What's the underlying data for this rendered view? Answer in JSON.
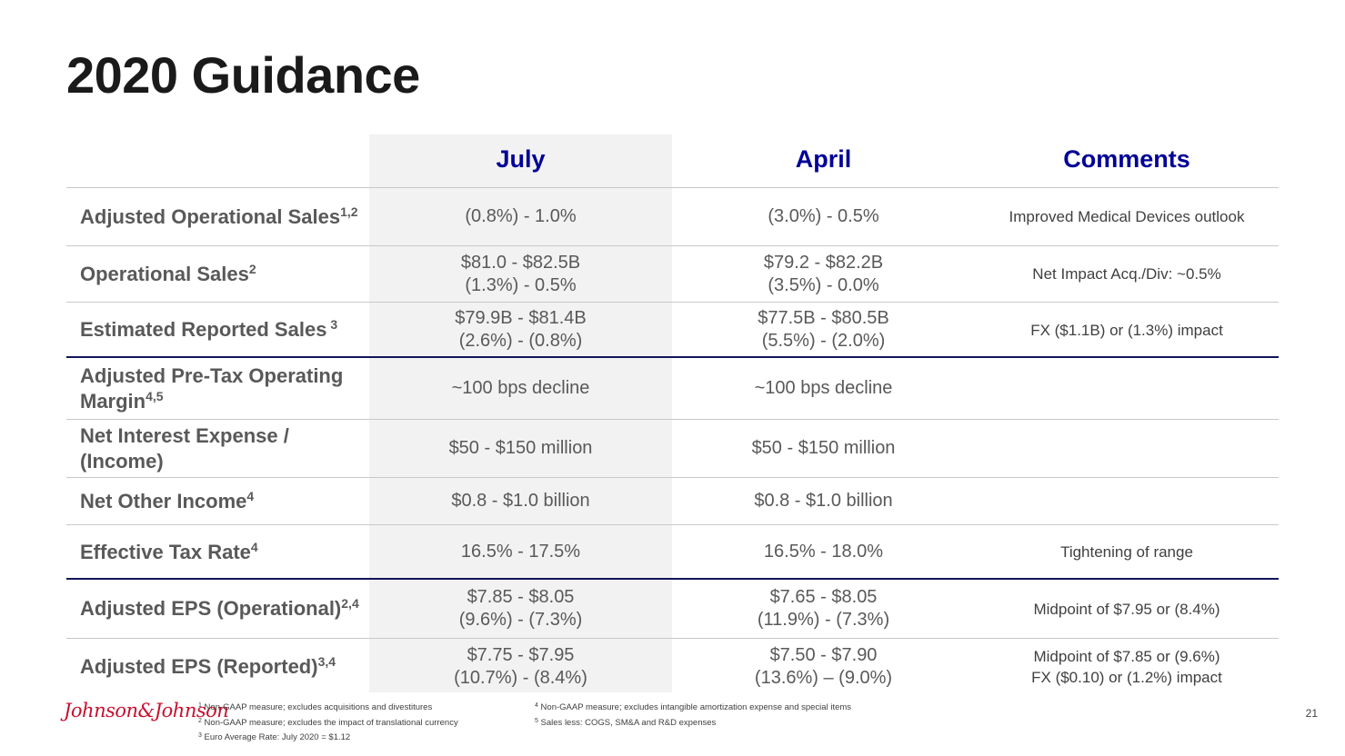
{
  "title": "2020 Guidance",
  "columns": {
    "july": "July",
    "april": "April",
    "comments": "Comments"
  },
  "rows": [
    {
      "label": "Adjusted Operational Sales",
      "sup": "1,2",
      "july": [
        "(0.8%) - 1.0%"
      ],
      "april": [
        "(3.0%) - 0.5%"
      ],
      "comments": [
        "Improved Medical Devices outlook"
      ]
    },
    {
      "label": "Operational Sales",
      "sup": "2",
      "july": [
        "$81.0 - $82.5B",
        "(1.3%) - 0.5%"
      ],
      "april": [
        "$79.2 - $82.2B",
        "(3.5%) - 0.0%"
      ],
      "comments": [
        "Net Impact Acq./Div: ~0.5%"
      ]
    },
    {
      "label": "Estimated Reported Sales",
      "sup": " 3",
      "july": [
        "$79.9B - $81.4B",
        "(2.6%) - (0.8%)"
      ],
      "april": [
        "$77.5B - $80.5B",
        "(5.5%) - (2.0%)"
      ],
      "comments": [
        "FX ($1.1B) or (1.3%) impact"
      ]
    },
    {
      "label": "Adjusted Pre-Tax Operating Margin",
      "sup": "4,5",
      "july": [
        "~100 bps decline"
      ],
      "april": [
        "~100 bps decline"
      ],
      "comments": []
    },
    {
      "label": "Net Interest Expense / (Income)",
      "sup": "",
      "july": [
        "$50 - $150 million"
      ],
      "april": [
        "$50 - $150 million"
      ],
      "comments": []
    },
    {
      "label": "Net Other Income",
      "sup": "4",
      "july": [
        "$0.8 - $1.0 billion"
      ],
      "april": [
        "$0.8 - $1.0 billion"
      ],
      "comments": []
    },
    {
      "label": "Effective Tax Rate",
      "sup": "4",
      "july": [
        "16.5% - 17.5%"
      ],
      "april": [
        "16.5% - 18.0%"
      ],
      "comments": [
        "Tightening of range"
      ]
    },
    {
      "label": "Adjusted EPS (Operational)",
      "sup": "2,4",
      "july": [
        "$7.85 - $8.05",
        "(9.6%) - (7.3%)"
      ],
      "april": [
        "$7.65 - $8.05",
        "(11.9%) - (7.3%)"
      ],
      "comments": [
        "Midpoint of $7.95 or (8.4%)"
      ]
    },
    {
      "label": "Adjusted EPS (Reported)",
      "sup": "3,4",
      "july": [
        "$7.75 - $7.95",
        "(10.7%) - (8.4%)"
      ],
      "april": [
        "$7.50 - $7.90",
        "(13.6%) – (9.0%)"
      ],
      "comments": [
        "Midpoint of $7.85 or (9.6%)",
        "FX ($0.10) or (1.2%) impact"
      ]
    }
  ],
  "footer": {
    "logo": "Johnson & Johnson",
    "notes_left": [
      {
        "num": "1",
        "text": "Non-GAAP measure; excludes acquisitions and divestitures"
      },
      {
        "num": "2",
        "text": "Non-GAAP measure; excludes the impact of translational currency"
      },
      {
        "num": "3",
        "text": "Euro Average Rate: July 2020 = $1.12"
      }
    ],
    "notes_right": [
      {
        "num": "4",
        "text": "Non-GAAP measure; excludes intangible amortization expense and special items"
      },
      {
        "num": "5",
        "text": "Sales less: COGS, SM&A and R&D expenses"
      }
    ],
    "page": "21"
  }
}
